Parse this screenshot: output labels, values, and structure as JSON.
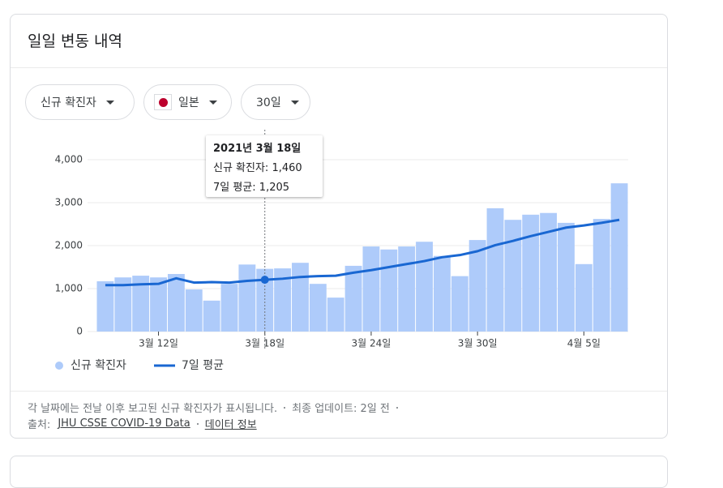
{
  "header": {
    "title": "일일 변동 내역"
  },
  "filters": [
    "신규 확진자",
    "일본",
    "30일"
  ],
  "chart_data": {
    "type": "bar",
    "categories": [
      null,
      null,
      null,
      "3월 12일",
      null,
      null,
      null,
      null,
      null,
      "3월 18일",
      null,
      null,
      null,
      null,
      null,
      "3월 24일",
      null,
      null,
      null,
      null,
      null,
      "3월 30일",
      null,
      null,
      null,
      null,
      null,
      "4월 5일",
      null,
      null
    ],
    "series": [
      {
        "name": "신규 확진자",
        "color": "#aecbfa",
        "type": "bar",
        "values": [
          1170,
          1260,
          1300,
          1260,
          1340,
          980,
          720,
          1110,
          1560,
          1460,
          1470,
          1600,
          1110,
          790,
          1530,
          1980,
          1910,
          1980,
          2090,
          1760,
          1290,
          2130,
          2870,
          2600,
          2720,
          2760,
          2530,
          1570,
          2620,
          3450
        ]
      },
      {
        "name": "7일 평균",
        "color": "#1967d2",
        "type": "line",
        "values": [
          1080,
          1080,
          1100,
          1110,
          1240,
          1140,
          1150,
          1140,
          1180,
          1205,
          1230,
          1270,
          1290,
          1300,
          1370,
          1430,
          1500,
          1570,
          1640,
          1730,
          1780,
          1870,
          2010,
          2110,
          2220,
          2320,
          2420,
          2470,
          2530,
          2600
        ]
      }
    ],
    "ylim": [
      0,
      4000
    ],
    "yticks": [
      0,
      {
        "value": 1000,
        "label": "1,000"
      },
      {
        "value": 2000,
        "label": "2,000"
      },
      {
        "value": 3000,
        "label": "3,000"
      },
      {
        "value": 4000,
        "label": "4,000"
      }
    ],
    "grid": true,
    "tooltip": {
      "index": 9,
      "date": "2021년 3월 18일",
      "lines": [
        "신규 확진자: 1,460",
        "7일 평균: 1,205"
      ]
    }
  },
  "footer": {
    "note": "각 날짜에는 전날 이후 보고된 신규 확진자가 표시됩니다.",
    "updated": "최종 업데이트: 2일 전",
    "source_label": "출처:",
    "source_link": "JHU CSSE COVID-19 Data",
    "info_link": "데이터 정보"
  }
}
